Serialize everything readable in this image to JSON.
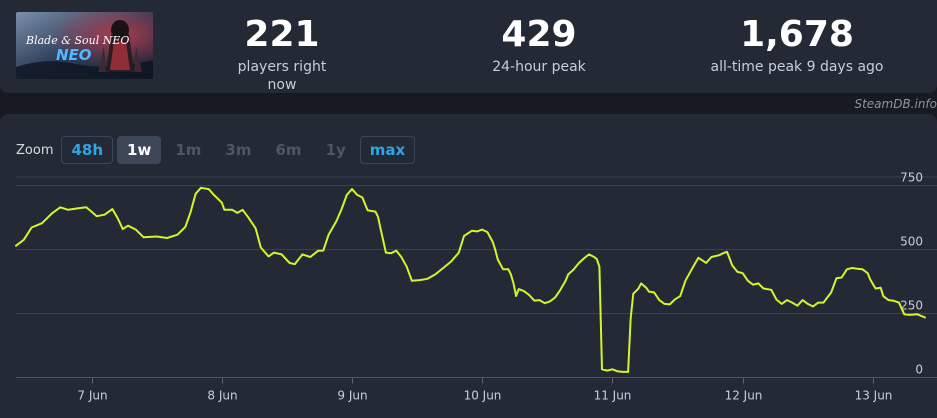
{
  "game": {
    "banner_text": "Blade & Soul NEO"
  },
  "stats": [
    {
      "value": "221",
      "label": "players right now"
    },
    {
      "value": "429",
      "label": "24-hour peak"
    },
    {
      "value": "1,678",
      "label": "all-time peak 9 days ago"
    }
  ],
  "watermark": "SteamDB.info",
  "zoom": {
    "label": "Zoom",
    "options": [
      {
        "label": "48h",
        "state": "link"
      },
      {
        "label": "1w",
        "state": "active"
      },
      {
        "label": "1m",
        "state": "disabled"
      },
      {
        "label": "3m",
        "state": "disabled"
      },
      {
        "label": "6m",
        "state": "disabled"
      },
      {
        "label": "1y",
        "state": "disabled"
      },
      {
        "label": "max",
        "state": "link"
      }
    ]
  },
  "colors": {
    "line": "#d4f42c",
    "accent": "#2fa4e7",
    "panel": "#232a35",
    "background": "#171a21"
  },
  "chart_data": {
    "type": "line",
    "x_unit": "days since start of 7 Jun",
    "x_ticks": [
      {
        "x": 0,
        "label": "7 Jun"
      },
      {
        "x": 1,
        "label": "8 Jun"
      },
      {
        "x": 2,
        "label": "9 Jun"
      },
      {
        "x": 3,
        "label": "10 Jun"
      },
      {
        "x": 4,
        "label": "11 Jun"
      },
      {
        "x": 5,
        "label": "12 Jun"
      },
      {
        "x": 6,
        "label": "13 Jun"
      }
    ],
    "y_ticks": [
      0,
      250,
      500,
      750
    ],
    "xlim": [
      -0.58,
      6.4
    ],
    "ylim": [
      0,
      780
    ],
    "grid": true,
    "series": [
      {
        "name": "Players",
        "color": "#d4f42c",
        "points": [
          [
            -0.58,
            512
          ],
          [
            -0.52,
            535
          ],
          [
            -0.46,
            583
          ],
          [
            -0.38,
            600
          ],
          [
            -0.3,
            640
          ],
          [
            -0.24,
            662
          ],
          [
            -0.18,
            652
          ],
          [
            -0.1,
            658
          ],
          [
            -0.04,
            662
          ],
          [
            0.0,
            645
          ],
          [
            0.04,
            627
          ],
          [
            0.1,
            633
          ],
          [
            0.16,
            655
          ],
          [
            0.2,
            620
          ],
          [
            0.24,
            577
          ],
          [
            0.28,
            590
          ],
          [
            0.34,
            575
          ],
          [
            0.4,
            545
          ],
          [
            0.5,
            548
          ],
          [
            0.58,
            542
          ],
          [
            0.66,
            555
          ],
          [
            0.72,
            585
          ],
          [
            0.76,
            642
          ],
          [
            0.8,
            715
          ],
          [
            0.84,
            738
          ],
          [
            0.9,
            733
          ],
          [
            0.94,
            710
          ],
          [
            1.0,
            680
          ],
          [
            1.02,
            652
          ],
          [
            1.08,
            652
          ],
          [
            1.12,
            640
          ],
          [
            1.16,
            652
          ],
          [
            1.2,
            625
          ],
          [
            1.26,
            580
          ],
          [
            1.3,
            505
          ],
          [
            1.36,
            470
          ],
          [
            1.4,
            485
          ],
          [
            1.46,
            478
          ],
          [
            1.52,
            445
          ],
          [
            1.56,
            440
          ],
          [
            1.62,
            478
          ],
          [
            1.68,
            468
          ],
          [
            1.74,
            492
          ],
          [
            1.78,
            493
          ],
          [
            1.82,
            555
          ],
          [
            1.88,
            608
          ],
          [
            1.92,
            655
          ],
          [
            1.96,
            710
          ],
          [
            2.0,
            733
          ],
          [
            2.04,
            710
          ],
          [
            2.08,
            700
          ],
          [
            2.12,
            650
          ],
          [
            2.18,
            645
          ],
          [
            2.2,
            625
          ],
          [
            2.22,
            578
          ],
          [
            2.26,
            485
          ],
          [
            2.3,
            483
          ],
          [
            2.34,
            493
          ],
          [
            2.38,
            467
          ],
          [
            2.42,
            430
          ],
          [
            2.46,
            375
          ],
          [
            2.52,
            378
          ],
          [
            2.58,
            383
          ],
          [
            2.64,
            400
          ],
          [
            2.7,
            425
          ],
          [
            2.76,
            450
          ],
          [
            2.82,
            485
          ],
          [
            2.86,
            550
          ],
          [
            2.92,
            570
          ],
          [
            2.96,
            568
          ],
          [
            3.0,
            575
          ],
          [
            3.04,
            565
          ],
          [
            3.08,
            528
          ],
          [
            3.1,
            497
          ],
          [
            3.12,
            458
          ],
          [
            3.16,
            420
          ],
          [
            3.2,
            420
          ],
          [
            3.22,
            400
          ],
          [
            3.24,
            365
          ],
          [
            3.26,
            316
          ],
          [
            3.28,
            343
          ],
          [
            3.32,
            335
          ],
          [
            3.36,
            320
          ],
          [
            3.4,
            298
          ],
          [
            3.44,
            300
          ],
          [
            3.48,
            288
          ],
          [
            3.52,
            295
          ],
          [
            3.56,
            310
          ],
          [
            3.6,
            340
          ],
          [
            3.64,
            375
          ],
          [
            3.66,
            400
          ],
          [
            3.7,
            418
          ],
          [
            3.74,
            443
          ],
          [
            3.78,
            462
          ],
          [
            3.82,
            478
          ],
          [
            3.86,
            468
          ],
          [
            3.88,
            460
          ],
          [
            3.9,
            430
          ],
          [
            3.92,
            30
          ],
          [
            3.96,
            25
          ],
          [
            4.0,
            30
          ],
          [
            4.04,
            22
          ],
          [
            4.08,
            20
          ],
          [
            4.12,
            20
          ],
          [
            4.14,
            230
          ],
          [
            4.16,
            325
          ],
          [
            4.2,
            345
          ],
          [
            4.22,
            365
          ],
          [
            4.26,
            348
          ],
          [
            4.28,
            333
          ],
          [
            4.32,
            330
          ],
          [
            4.36,
            300
          ],
          [
            4.4,
            285
          ],
          [
            4.44,
            283
          ],
          [
            4.48,
            303
          ],
          [
            4.52,
            315
          ],
          [
            4.56,
            375
          ],
          [
            4.62,
            430
          ],
          [
            4.66,
            465
          ],
          [
            4.72,
            445
          ],
          [
            4.76,
            468
          ],
          [
            4.82,
            475
          ],
          [
            4.86,
            485
          ],
          [
            4.88,
            488
          ],
          [
            4.92,
            435
          ],
          [
            4.96,
            410
          ],
          [
            5.0,
            405
          ],
          [
            5.04,
            375
          ],
          [
            5.08,
            360
          ],
          [
            5.12,
            365
          ],
          [
            5.16,
            345
          ],
          [
            5.22,
            340
          ],
          [
            5.26,
            302
          ],
          [
            5.3,
            285
          ],
          [
            5.34,
            300
          ],
          [
            5.38,
            290
          ],
          [
            5.42,
            278
          ],
          [
            5.46,
            300
          ],
          [
            5.5,
            285
          ],
          [
            5.54,
            275
          ],
          [
            5.58,
            290
          ],
          [
            5.62,
            290
          ],
          [
            5.68,
            330
          ],
          [
            5.72,
            385
          ],
          [
            5.76,
            388
          ],
          [
            5.8,
            420
          ],
          [
            5.84,
            425
          ],
          [
            5.88,
            422
          ],
          [
            5.92,
            420
          ],
          [
            5.96,
            405
          ],
          [
            5.98,
            380
          ],
          [
            6.02,
            345
          ],
          [
            6.06,
            348
          ],
          [
            6.08,
            315
          ],
          [
            6.12,
            300
          ],
          [
            6.16,
            297
          ],
          [
            6.2,
            290
          ],
          [
            6.24,
            245
          ],
          [
            6.28,
            242
          ],
          [
            6.34,
            245
          ],
          [
            6.4,
            232
          ]
        ]
      }
    ]
  }
}
